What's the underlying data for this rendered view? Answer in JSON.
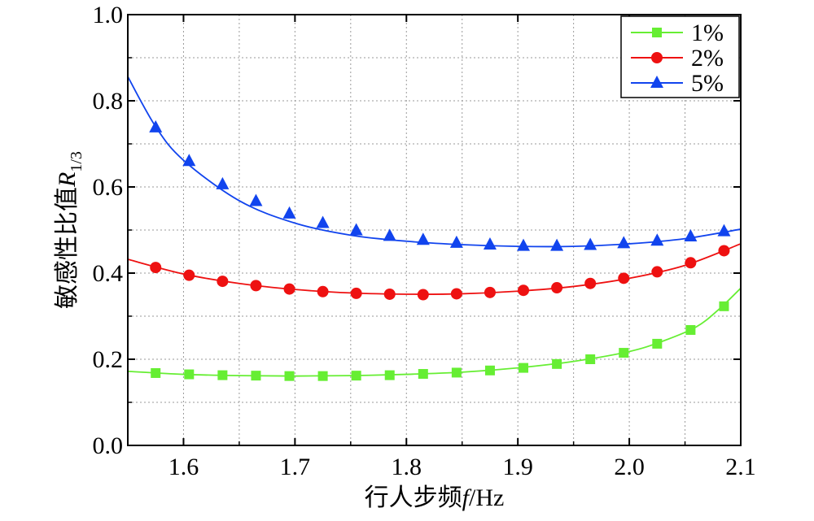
{
  "chart_data": {
    "type": "line",
    "xlabel": {
      "prefix": "行人步频",
      "var": "f",
      "suffix": "/Hz"
    },
    "ylabel": {
      "prefix": "敏感性比值",
      "var": "R",
      "sub": "1/3"
    },
    "xlim": [
      1.55,
      2.1
    ],
    "ylim": [
      0.0,
      1.0
    ],
    "x_ticks": [
      "1.6",
      "1.7",
      "1.8",
      "1.9",
      "2.0",
      "2.1"
    ],
    "y_ticks": [
      "0.0",
      "0.2",
      "0.4",
      "0.6",
      "0.8",
      "1.0"
    ],
    "grid": true,
    "legend_position": "top-right",
    "series": [
      {
        "name": "1%",
        "color": "#66ee33",
        "marker": "square",
        "line_x": [
          1.55,
          1.6,
          1.65,
          1.7,
          1.75,
          1.8,
          1.85,
          1.9,
          1.95,
          2.0,
          2.03,
          2.06,
          2.08,
          2.1
        ],
        "line_y": [
          0.172,
          0.165,
          0.162,
          0.161,
          0.162,
          0.165,
          0.17,
          0.18,
          0.195,
          0.218,
          0.242,
          0.275,
          0.315,
          0.365
        ],
        "x": [
          1.575,
          1.605,
          1.635,
          1.665,
          1.695,
          1.725,
          1.755,
          1.785,
          1.815,
          1.845,
          1.875,
          1.905,
          1.935,
          1.965,
          1.995,
          2.025,
          2.055,
          2.085
        ],
        "values": [
          0.168,
          0.165,
          0.163,
          0.162,
          0.161,
          0.161,
          0.162,
          0.163,
          0.166,
          0.169,
          0.174,
          0.18,
          0.189,
          0.2,
          0.215,
          0.236,
          0.268,
          0.323
        ]
      },
      {
        "name": "2%",
        "color": "#ee1111",
        "marker": "circle",
        "line_x": [
          1.55,
          1.6,
          1.65,
          1.7,
          1.75,
          1.8,
          1.85,
          1.9,
          1.95,
          2.0,
          2.05,
          2.1
        ],
        "line_y": [
          0.432,
          0.398,
          0.376,
          0.362,
          0.354,
          0.351,
          0.352,
          0.358,
          0.369,
          0.388,
          0.418,
          0.468
        ],
        "x": [
          1.575,
          1.605,
          1.635,
          1.665,
          1.695,
          1.725,
          1.755,
          1.785,
          1.815,
          1.845,
          1.875,
          1.905,
          1.935,
          1.965,
          1.995,
          2.025,
          2.055,
          2.085
        ],
        "values": [
          0.413,
          0.395,
          0.381,
          0.371,
          0.363,
          0.357,
          0.353,
          0.351,
          0.35,
          0.352,
          0.355,
          0.36,
          0.366,
          0.376,
          0.388,
          0.403,
          0.424,
          0.452
        ]
      },
      {
        "name": "5%",
        "color": "#1144ee",
        "marker": "triangle",
        "line_x": [
          1.55,
          1.575,
          1.6,
          1.65,
          1.7,
          1.75,
          1.8,
          1.85,
          1.9,
          1.95,
          2.0,
          2.05,
          2.1
        ],
        "line_y": [
          0.856,
          0.74,
          0.662,
          0.568,
          0.516,
          0.488,
          0.474,
          0.466,
          0.462,
          0.462,
          0.468,
          0.48,
          0.502
        ],
        "x": [
          1.575,
          1.605,
          1.635,
          1.665,
          1.695,
          1.725,
          1.755,
          1.785,
          1.815,
          1.845,
          1.875,
          1.905,
          1.935,
          1.965,
          1.995,
          2.025,
          2.055,
          2.085
        ],
        "values": [
          0.738,
          0.66,
          0.606,
          0.567,
          0.538,
          0.516,
          0.499,
          0.486,
          0.477,
          0.47,
          0.466,
          0.463,
          0.463,
          0.465,
          0.469,
          0.475,
          0.485,
          0.497
        ]
      }
    ]
  }
}
